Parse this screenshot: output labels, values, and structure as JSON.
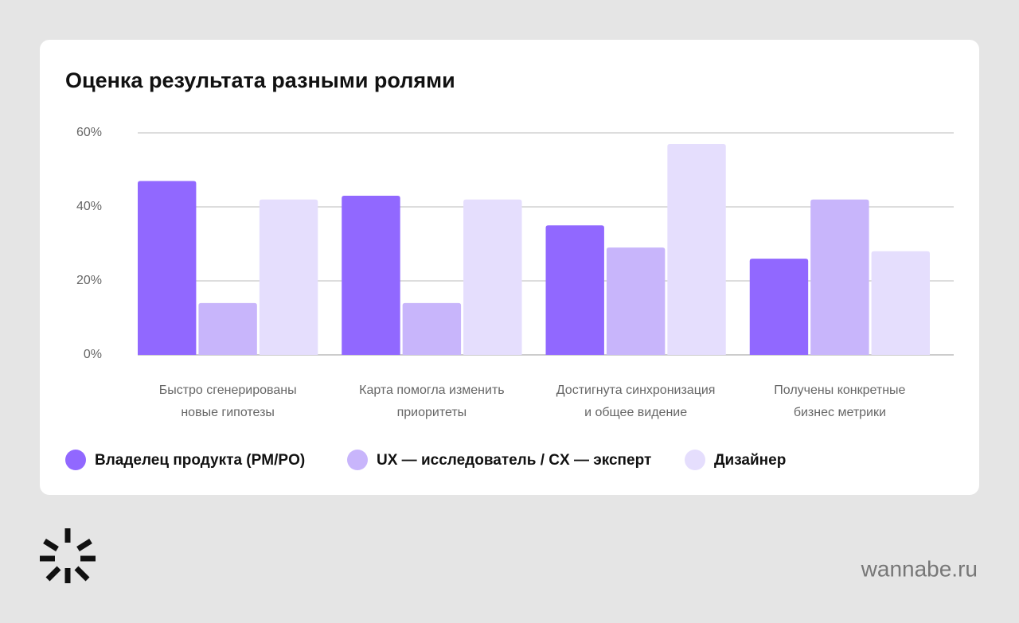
{
  "chart_data": {
    "type": "bar",
    "title": "Оценка результата разными ролями",
    "categories": [
      "Быстро сгенерированы\nновые гипотезы",
      "Карта помогла изменить\nприоритеты",
      "Достигнута синхронизация\nи общее видение",
      "Получены конкретные\nбизнес метрики"
    ],
    "series": [
      {
        "name": "Владелец продукта (PM/PO)",
        "color": "#9168ff",
        "values": [
          47,
          43,
          35,
          26
        ]
      },
      {
        "name": "UX — исследователь / CX — эксперт",
        "color": "#c8b5fb",
        "values": [
          14,
          14,
          29,
          42
        ]
      },
      {
        "name": "Дизайнер",
        "color": "#e5defd",
        "values": [
          42,
          42,
          57,
          28
        ]
      }
    ],
    "ylim": [
      0,
      60
    ],
    "yticks": [
      {
        "value": 0,
        "label": "0%"
      },
      {
        "value": 20,
        "label": "20%"
      },
      {
        "value": 40,
        "label": "40%"
      },
      {
        "value": 60,
        "label": "60%"
      }
    ],
    "grid": true,
    "legend": "bottom"
  },
  "footer": {
    "site": "wannabe.ru"
  }
}
